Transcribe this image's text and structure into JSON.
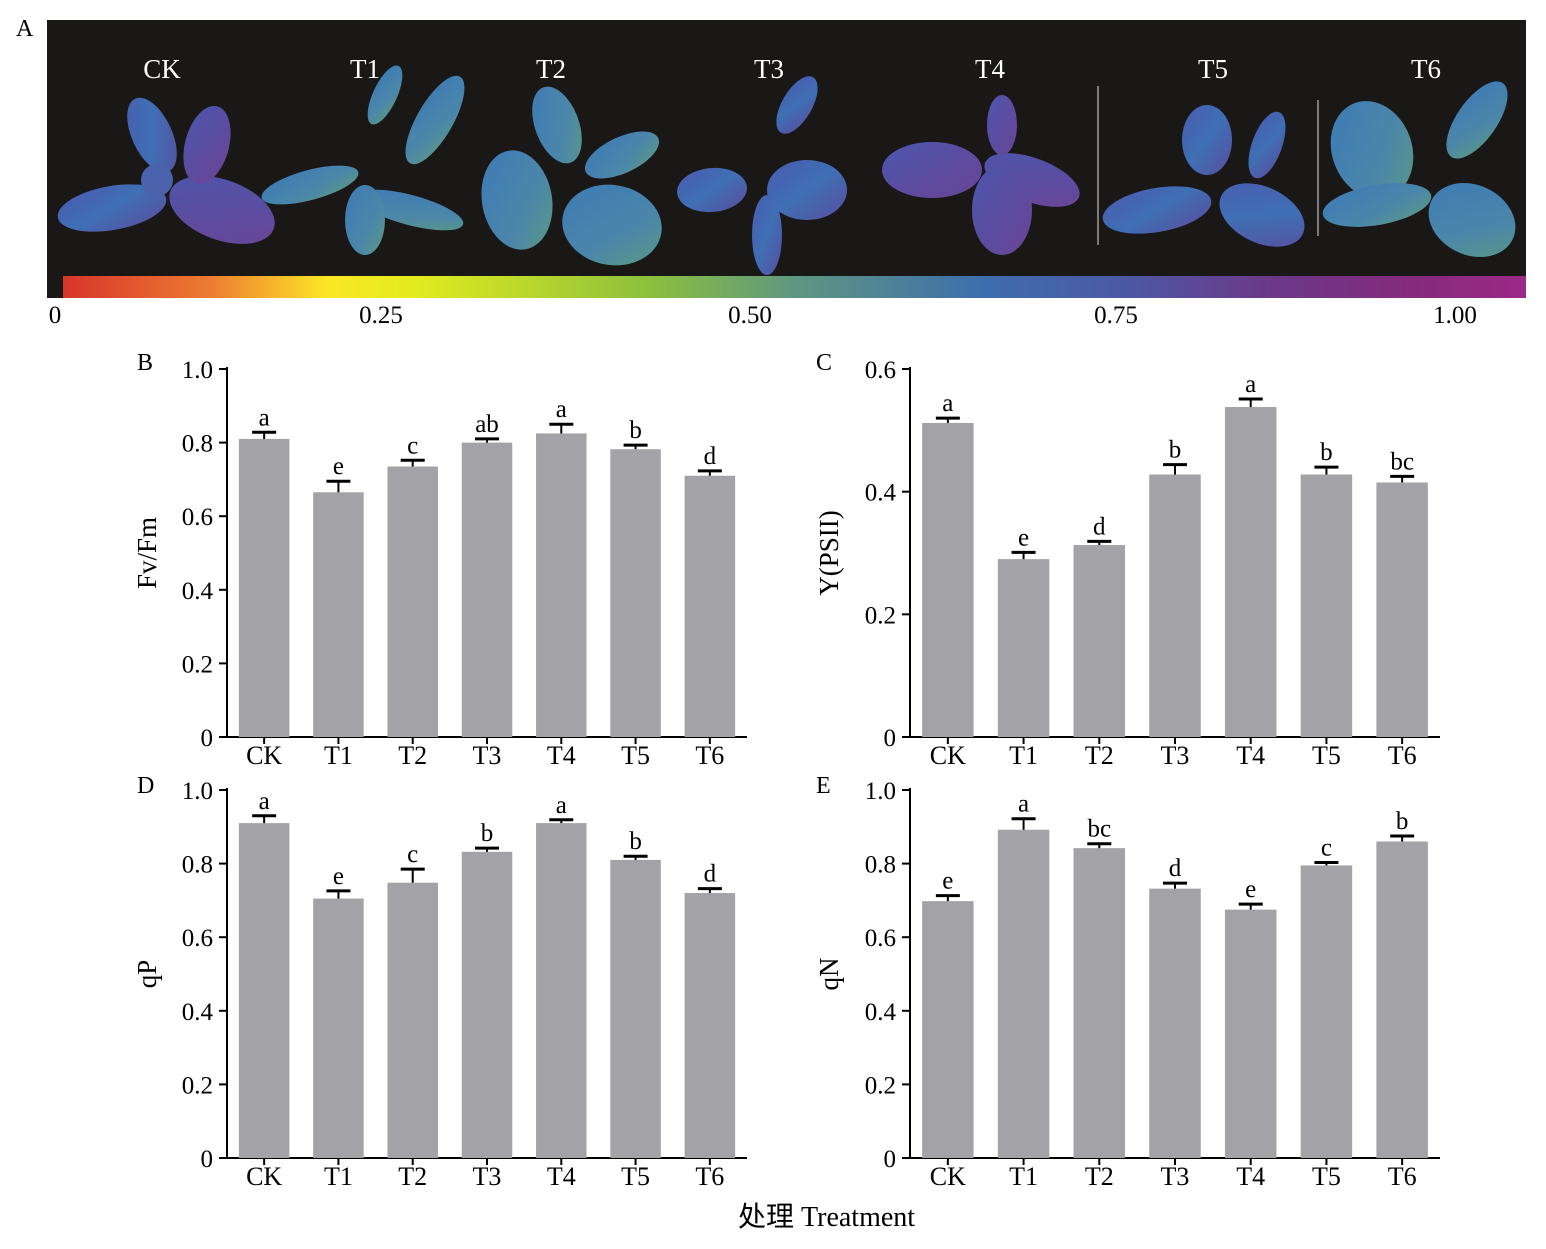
{
  "panel_a": {
    "letter": "A",
    "plants": [
      "CK",
      "T1",
      "T2",
      "T3",
      "T4",
      "T5",
      "T6"
    ],
    "colorbar_ticks": [
      "0",
      "0.25",
      "0.50",
      "0.75",
      "1.00"
    ],
    "colorbar_colors": [
      "#d7352a",
      "#fbe625",
      "#8dc03c",
      "#3e6dad",
      "#6a3a8a",
      "#9b2987"
    ]
  },
  "common_xlabel": "处理 Treatment",
  "chart_data": [
    {
      "panel": "B",
      "type": "bar",
      "ylabel": "Fv/Fm",
      "ylim": [
        0,
        1.0
      ],
      "yticks": [
        "0",
        "0.2",
        "0.4",
        "0.6",
        "0.8",
        "1.0"
      ],
      "ytick_values": [
        0,
        0.2,
        0.4,
        0.6,
        0.8,
        1.0
      ],
      "categories": [
        "CK",
        "T1",
        "T2",
        "T3",
        "T4",
        "T5",
        "T6"
      ],
      "values": [
        0.81,
        0.665,
        0.735,
        0.8,
        0.825,
        0.782,
        0.71
      ],
      "errors": [
        0.018,
        0.03,
        0.017,
        0.01,
        0.025,
        0.011,
        0.013
      ],
      "labels": [
        "a",
        "e",
        "c",
        "ab",
        "a",
        "b",
        "d"
      ],
      "bar_color": "#a3a2a7"
    },
    {
      "panel": "C",
      "type": "bar",
      "ylabel": "Y(PSII)",
      "ylim": [
        0,
        0.6
      ],
      "yticks": [
        "0",
        "0.2",
        "0.4",
        "0.6"
      ],
      "ytick_values": [
        0,
        0.2,
        0.4,
        0.6
      ],
      "categories": [
        "CK",
        "T1",
        "T2",
        "T3",
        "T4",
        "T5",
        "T6"
      ],
      "values": [
        0.512,
        0.29,
        0.313,
        0.428,
        0.538,
        0.428,
        0.415
      ],
      "errors": [
        0.008,
        0.011,
        0.006,
        0.016,
        0.013,
        0.012,
        0.01
      ],
      "labels": [
        "a",
        "e",
        "d",
        "b",
        "a",
        "b",
        "bc"
      ],
      "bar_color": "#a3a2a7"
    },
    {
      "panel": "D",
      "type": "bar",
      "ylabel": "qP",
      "ylim": [
        0,
        1.0
      ],
      "yticks": [
        "0",
        "0.2",
        "0.4",
        "0.6",
        "0.8",
        "1.0"
      ],
      "ytick_values": [
        0,
        0.2,
        0.4,
        0.6,
        0.8,
        1.0
      ],
      "categories": [
        "CK",
        "T1",
        "T2",
        "T3",
        "T4",
        "T5",
        "T6"
      ],
      "values": [
        0.91,
        0.705,
        0.748,
        0.832,
        0.91,
        0.81,
        0.72
      ],
      "errors": [
        0.02,
        0.021,
        0.037,
        0.01,
        0.009,
        0.01,
        0.012
      ],
      "labels": [
        "a",
        "e",
        "c",
        "b",
        "a",
        "b",
        "d"
      ],
      "bar_color": "#a3a2a7"
    },
    {
      "panel": "E",
      "type": "bar",
      "ylabel": "qN",
      "ylim": [
        0,
        1.0
      ],
      "yticks": [
        "0",
        "0.2",
        "0.4",
        "0.6",
        "0.8",
        "1.0"
      ],
      "ytick_values": [
        0,
        0.2,
        0.4,
        0.6,
        0.8,
        1.0
      ],
      "categories": [
        "CK",
        "T1",
        "T2",
        "T3",
        "T4",
        "T5",
        "T6"
      ],
      "values": [
        0.698,
        0.892,
        0.842,
        0.732,
        0.675,
        0.795,
        0.86
      ],
      "errors": [
        0.015,
        0.03,
        0.012,
        0.015,
        0.015,
        0.008,
        0.015
      ],
      "labels": [
        "e",
        "a",
        "bc",
        "d",
        "e",
        "c",
        "b"
      ],
      "bar_color": "#a3a2a7"
    }
  ]
}
